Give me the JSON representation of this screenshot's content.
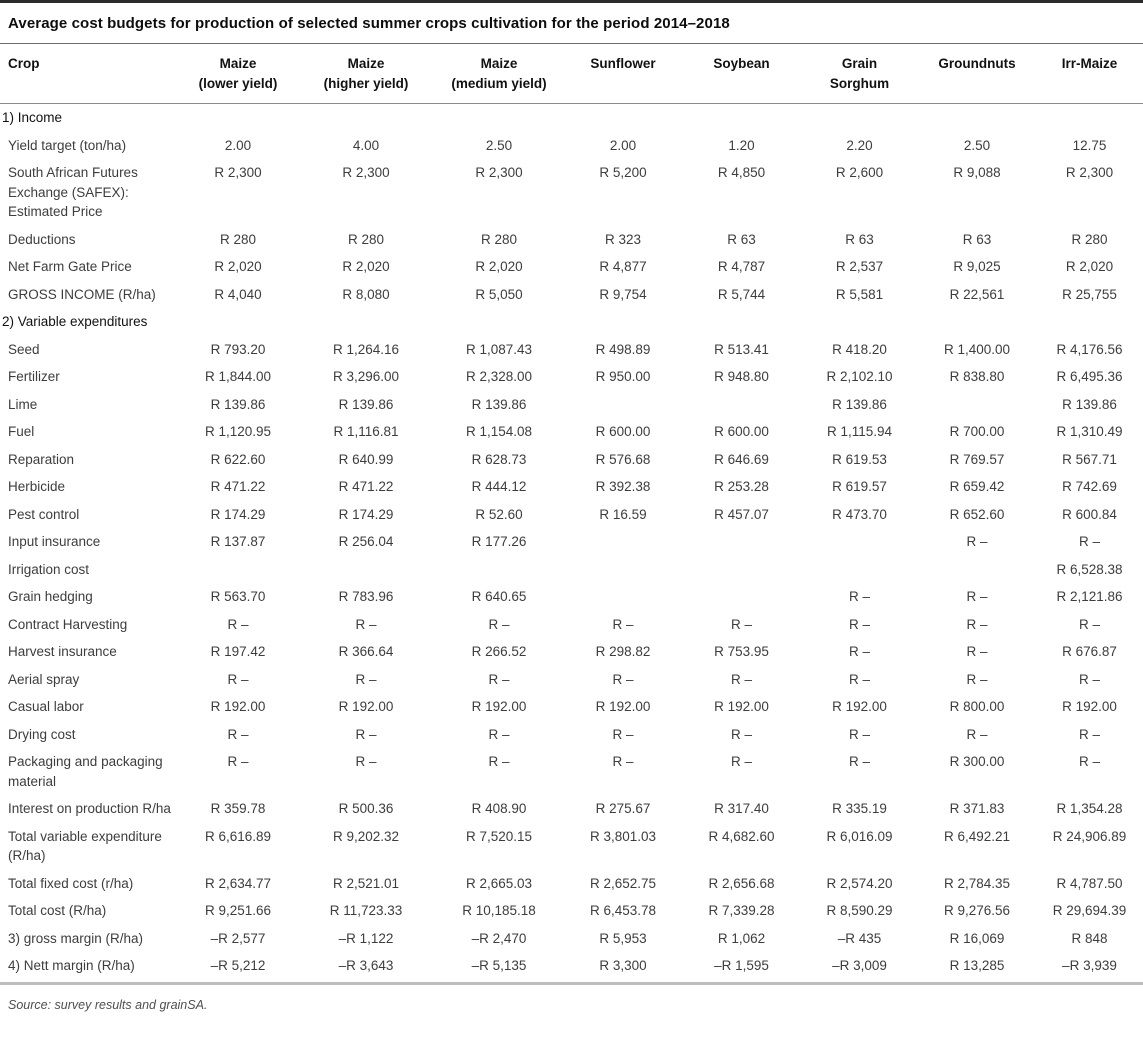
{
  "title": "Average cost budgets for production of selected summer crops cultivation for the period 2014–2018",
  "source_note": "Source: survey results and grainSA.",
  "table": {
    "columns": [
      {
        "label": "Crop",
        "sub": ""
      },
      {
        "label": "Maize",
        "sub": "(lower yield)"
      },
      {
        "label": "Maize",
        "sub": "(higher yield)"
      },
      {
        "label": "Maize",
        "sub": "(medium yield)"
      },
      {
        "label": "Sunflower",
        "sub": ""
      },
      {
        "label": "Soybean",
        "sub": ""
      },
      {
        "label": "Grain",
        "sub": "Sorghum"
      },
      {
        "label": "Groundnuts",
        "sub": ""
      },
      {
        "label": "Irr-Maize",
        "sub": ""
      }
    ],
    "rows": [
      {
        "type": "section",
        "label": "1) Income"
      },
      {
        "type": "data",
        "label": "Yield target (ton/ha)",
        "values": [
          "2.00",
          "4.00",
          "2.50",
          "2.00",
          "1.20",
          "2.20",
          "2.50",
          "12.75"
        ]
      },
      {
        "type": "data",
        "label": "South African Futures Exchange (SAFEX): Estimated Price",
        "values": [
          "R 2,300",
          "R 2,300",
          "R 2,300",
          "R 5,200",
          "R 4,850",
          "R 2,600",
          "R 9,088",
          "R 2,300"
        ]
      },
      {
        "type": "data",
        "label": "Deductions",
        "values": [
          "R 280",
          "R 280",
          "R 280",
          "R 323",
          "R 63",
          "R 63",
          "R 63",
          "R 280"
        ]
      },
      {
        "type": "data",
        "label": "Net Farm Gate Price",
        "values": [
          "R 2,020",
          "R 2,020",
          "R 2,020",
          "R 4,877",
          "R 4,787",
          "R 2,537",
          "R 9,025",
          "R 2,020"
        ]
      },
      {
        "type": "data",
        "label": "GROSS INCOME (R/ha)",
        "values": [
          "R 4,040",
          "R 8,080",
          "R 5,050",
          "R 9,754",
          "R 5,744",
          "R 5,581",
          "R 22,561",
          "R 25,755"
        ]
      },
      {
        "type": "section",
        "label": "2) Variable expenditures"
      },
      {
        "type": "data",
        "label": "Seed",
        "values": [
          "R 793.20",
          "R 1,264.16",
          "R 1,087.43",
          "R 498.89",
          "R 513.41",
          "R 418.20",
          "R 1,400.00",
          "R 4,176.56"
        ]
      },
      {
        "type": "data",
        "label": "Fertilizer",
        "values": [
          "R 1,844.00",
          "R 3,296.00",
          "R 2,328.00",
          "R 950.00",
          "R 948.80",
          "R 2,102.10",
          "R 838.80",
          "R 6,495.36"
        ]
      },
      {
        "type": "data",
        "label": "Lime",
        "values": [
          "R 139.86",
          "R 139.86",
          "R 139.86",
          "",
          "",
          "R 139.86",
          "",
          "R 139.86"
        ]
      },
      {
        "type": "data",
        "label": "Fuel",
        "values": [
          "R 1,120.95",
          "R 1,116.81",
          "R 1,154.08",
          "R 600.00",
          "R 600.00",
          "R 1,115.94",
          "R 700.00",
          "R 1,310.49"
        ]
      },
      {
        "type": "data",
        "label": "Reparation",
        "values": [
          "R 622.60",
          "R 640.99",
          "R 628.73",
          "R 576.68",
          "R 646.69",
          "R 619.53",
          "R 769.57",
          "R 567.71"
        ]
      },
      {
        "type": "data",
        "label": "Herbicide",
        "values": [
          "R 471.22",
          "R 471.22",
          "R 444.12",
          "R 392.38",
          "R 253.28",
          "R 619.57",
          "R 659.42",
          "R 742.69"
        ]
      },
      {
        "type": "data",
        "label": "Pest control",
        "values": [
          "R 174.29",
          "R 174.29",
          "R 52.60",
          "R 16.59",
          "R 457.07",
          "R 473.70",
          "R 652.60",
          "R 600.84"
        ]
      },
      {
        "type": "data",
        "label": "Input insurance",
        "values": [
          "R 137.87",
          "R 256.04",
          "R 177.26",
          "",
          "",
          "",
          "R –",
          "R –"
        ]
      },
      {
        "type": "data",
        "label": "Irrigation cost",
        "values": [
          "",
          "",
          "",
          "",
          "",
          "",
          "",
          "R 6,528.38"
        ]
      },
      {
        "type": "data",
        "label": "Grain hedging",
        "values": [
          "R 563.70",
          "R 783.96",
          "R 640.65",
          "",
          "",
          "R –",
          "R –",
          "R 2,121.86"
        ]
      },
      {
        "type": "data",
        "label": "Contract Harvesting",
        "values": [
          "R –",
          "R –",
          "R –",
          "R –",
          "R –",
          "R –",
          "R –",
          "R –"
        ]
      },
      {
        "type": "data",
        "label": "Harvest insurance",
        "values": [
          "R 197.42",
          "R 366.64",
          "R 266.52",
          "R 298.82",
          "R 753.95",
          "R –",
          "R –",
          "R 676.87"
        ]
      },
      {
        "type": "data",
        "label": "Aerial spray",
        "values": [
          "R –",
          "R –",
          "R –",
          "R –",
          "R –",
          "R –",
          "R –",
          "R –"
        ]
      },
      {
        "type": "data",
        "label": "Casual labor",
        "values": [
          "R 192.00",
          "R 192.00",
          "R 192.00",
          "R 192.00",
          "R 192.00",
          "R 192.00",
          "R 800.00",
          "R 192.00"
        ]
      },
      {
        "type": "data",
        "label": "Drying cost",
        "values": [
          "R –",
          "R –",
          "R –",
          "R –",
          "R –",
          "R –",
          "R –",
          "R –"
        ]
      },
      {
        "type": "data",
        "label": "Packaging and packaging material",
        "values": [
          "R –",
          "R –",
          "R –",
          "R –",
          "R –",
          "R –",
          "R 300.00",
          "R –"
        ]
      },
      {
        "type": "data",
        "label": "Interest on production R/ha",
        "values": [
          "R 359.78",
          "R 500.36",
          "R 408.90",
          "R 275.67",
          "R 317.40",
          "R 335.19",
          "R 371.83",
          "R 1,354.28"
        ]
      },
      {
        "type": "data",
        "label": "Total variable expenditure (R/ha)",
        "values": [
          "R 6,616.89",
          "R 9,202.32",
          "R 7,520.15",
          "R 3,801.03",
          "R 4,682.60",
          "R 6,016.09",
          "R 6,492.21",
          "R 24,906.89"
        ]
      },
      {
        "type": "data",
        "label": "Total fixed cost (r/ha)",
        "values": [
          "R 2,634.77",
          "R 2,521.01",
          "R 2,665.03",
          "R 2,652.75",
          "R 2,656.68",
          "R 2,574.20",
          "R 2,784.35",
          "R 4,787.50"
        ]
      },
      {
        "type": "data",
        "label": "Total cost (R/ha)",
        "values": [
          "R 9,251.66",
          "R 11,723.33",
          "R 10,185.18",
          "R 6,453.78",
          "R 7,339.28",
          "R 8,590.29",
          "R 9,276.56",
          "R 29,694.39"
        ]
      },
      {
        "type": "data",
        "label": "3) gross margin (R/ha)",
        "values": [
          "–R 2,577",
          "–R 1,122",
          "–R 2,470",
          "R 5,953",
          "R 1,062",
          "–R 435",
          "R 16,069",
          "R 848"
        ]
      },
      {
        "type": "data",
        "label": "4) Nett margin (R/ha)",
        "values": [
          "–R 5,212",
          "–R 3,643",
          "–R 5,135",
          "R 3,300",
          "–R 1,595",
          "–R 3,009",
          "R 13,285",
          "–R 3,939"
        ]
      }
    ]
  }
}
